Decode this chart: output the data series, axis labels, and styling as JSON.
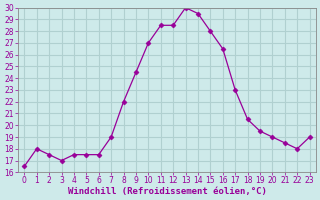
{
  "x": [
    0,
    1,
    2,
    3,
    4,
    5,
    6,
    7,
    8,
    9,
    10,
    11,
    12,
    13,
    14,
    15,
    16,
    17,
    18,
    19,
    20,
    21,
    22,
    23
  ],
  "y": [
    16.5,
    18.0,
    17.5,
    17.0,
    17.5,
    17.5,
    17.5,
    19.0,
    22.0,
    24.5,
    27.0,
    28.5,
    28.5,
    30.0,
    29.5,
    28.0,
    26.5,
    23.0,
    20.5,
    19.5,
    19.0,
    18.5,
    18.0,
    19.0
  ],
  "line_color": "#990099",
  "marker": "D",
  "marker_size": 2.5,
  "bg_color": "#ceeaea",
  "grid_color": "#b0d0d0",
  "xlabel": "Windchill (Refroidissement éolien,°C)",
  "ylim": [
    16,
    30
  ],
  "xlim_min": -0.5,
  "xlim_max": 23.5,
  "yticks": [
    16,
    17,
    18,
    19,
    20,
    21,
    22,
    23,
    24,
    25,
    26,
    27,
    28,
    29,
    30
  ],
  "xticks": [
    0,
    1,
    2,
    3,
    4,
    5,
    6,
    7,
    8,
    9,
    10,
    11,
    12,
    13,
    14,
    15,
    16,
    17,
    18,
    19,
    20,
    21,
    22,
    23
  ],
  "tick_fontsize": 5.5,
  "xlabel_fontsize": 6.5,
  "axis_color": "#990099",
  "spine_color": "#888888"
}
